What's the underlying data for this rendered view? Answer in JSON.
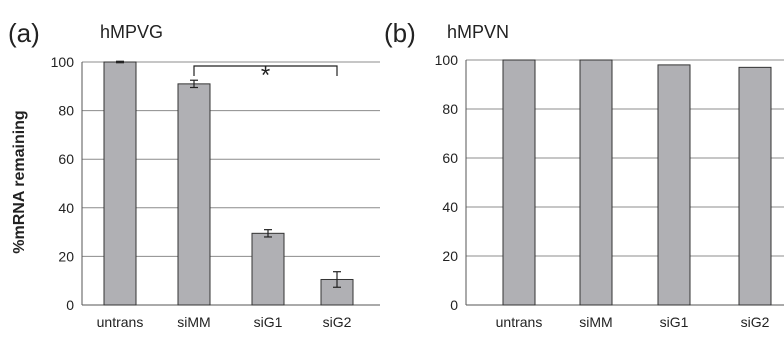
{
  "chart_data": [
    {
      "type": "bar",
      "panel": "(a)",
      "title": "hMPVG",
      "ylabel": "%mRNA remaining",
      "categories": [
        "untrans",
        "siMM",
        "siG1",
        "siG2"
      ],
      "values": [
        100,
        91,
        29.5,
        10.5
      ],
      "errors": [
        0.3,
        1.5,
        1.5,
        3.2
      ],
      "ylim": [
        0,
        100
      ],
      "yticks": [
        "0",
        "20",
        "40",
        "60",
        "80",
        "100"
      ],
      "grid": true,
      "significance": {
        "from": "siMM",
        "to": "siG2",
        "label": "*"
      }
    },
    {
      "type": "bar",
      "panel": "(b)",
      "title": "hMPVN",
      "ylabel": "",
      "categories": [
        "untrans",
        "siMM",
        "siG1",
        "siG2"
      ],
      "values": [
        100,
        100,
        98,
        97
      ],
      "ylim": [
        0,
        100
      ],
      "yticks": [
        "0",
        "20",
        "40",
        "60",
        "80",
        "100"
      ],
      "grid": true
    }
  ]
}
